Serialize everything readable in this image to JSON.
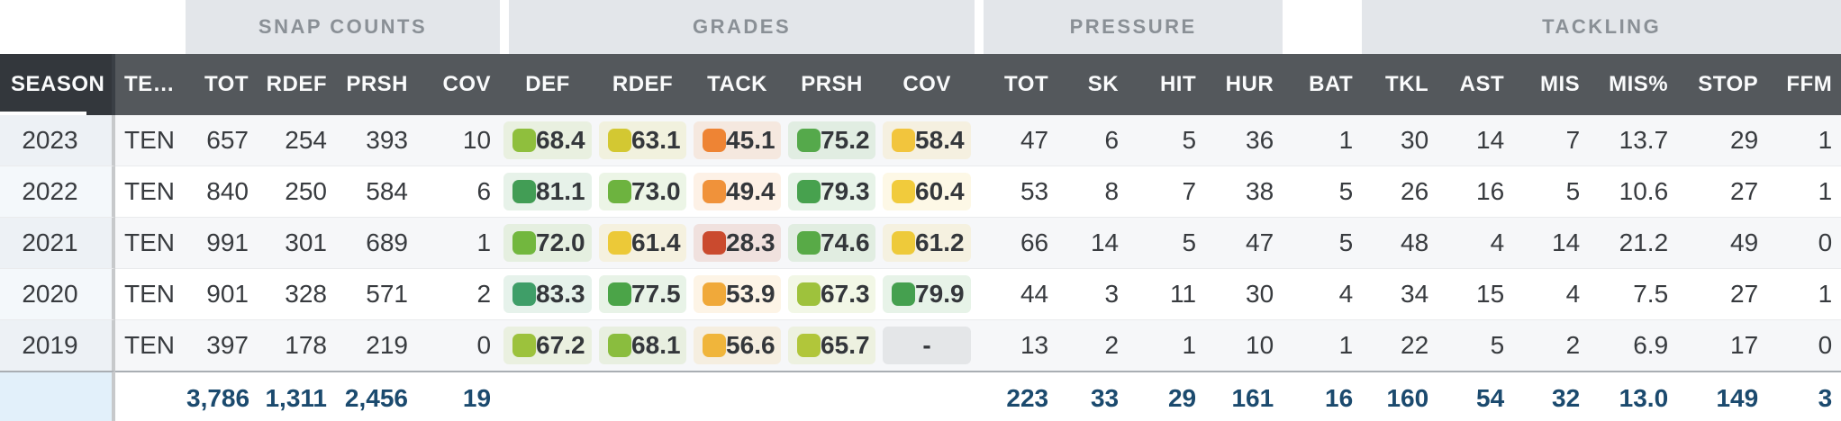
{
  "groups": {
    "snap_counts": "SNAP COUNTS",
    "grades": "GRADES",
    "pressure": "PRESSURE",
    "tackling": "TACKLING"
  },
  "columns": [
    "SEASON",
    "TE…",
    "TOT",
    "RDEF",
    "PRSH",
    "COV",
    "DEF",
    "RDEF",
    "TACK",
    "PRSH",
    "COV",
    "TOT",
    "SK",
    "HIT",
    "HUR",
    "BAT",
    "TKL",
    "AST",
    "MIS",
    "MIS%",
    "STOP",
    "FFM"
  ],
  "rows": [
    {
      "season": "2023",
      "team": "TEN",
      "snaps": [
        "657",
        "254",
        "393",
        "10"
      ],
      "grades": [
        {
          "v": "68.4",
          "c": "#8fbf3d"
        },
        {
          "v": "63.1",
          "c": "#d3c832"
        },
        {
          "v": "45.1",
          "c": "#ee8434"
        },
        {
          "v": "75.2",
          "c": "#55a94b"
        },
        {
          "v": "58.4",
          "c": "#f2c53d"
        }
      ],
      "pressure": [
        "47",
        "6",
        "5",
        "36",
        "1"
      ],
      "tackling": [
        "30",
        "14",
        "7",
        "13.7",
        "29",
        "1"
      ]
    },
    {
      "season": "2022",
      "team": "TEN",
      "snaps": [
        "840",
        "250",
        "584",
        "6"
      ],
      "grades": [
        {
          "v": "81.1",
          "c": "#429d55"
        },
        {
          "v": "73.0",
          "c": "#6db33f"
        },
        {
          "v": "49.4",
          "c": "#f0923a"
        },
        {
          "v": "79.3",
          "c": "#47a14e"
        },
        {
          "v": "60.4",
          "c": "#f1cb3c"
        }
      ],
      "pressure": [
        "53",
        "8",
        "7",
        "38",
        "5"
      ],
      "tackling": [
        "26",
        "16",
        "5",
        "10.6",
        "27",
        "1"
      ]
    },
    {
      "season": "2021",
      "team": "TEN",
      "snaps": [
        "991",
        "301",
        "689",
        "1"
      ],
      "grades": [
        {
          "v": "72.0",
          "c": "#72b73e"
        },
        {
          "v": "61.4",
          "c": "#ecc938"
        },
        {
          "v": "28.3",
          "c": "#ca4a2e"
        },
        {
          "v": "74.6",
          "c": "#58aa47"
        },
        {
          "v": "61.2",
          "c": "#eeca3a"
        }
      ],
      "pressure": [
        "66",
        "14",
        "5",
        "47",
        "5"
      ],
      "tackling": [
        "48",
        "4",
        "14",
        "21.2",
        "49",
        "0"
      ]
    },
    {
      "season": "2020",
      "team": "TEN",
      "snaps": [
        "901",
        "328",
        "571",
        "2"
      ],
      "grades": [
        {
          "v": "83.3",
          "c": "#3f9e68"
        },
        {
          "v": "77.5",
          "c": "#4ba448"
        },
        {
          "v": "53.9",
          "c": "#f0a93a"
        },
        {
          "v": "67.3",
          "c": "#9ec23c"
        },
        {
          "v": "79.9",
          "c": "#45a04f"
        }
      ],
      "pressure": [
        "44",
        "3",
        "11",
        "30",
        "4"
      ],
      "tackling": [
        "34",
        "15",
        "4",
        "7.5",
        "27",
        "1"
      ]
    },
    {
      "season": "2019",
      "team": "TEN",
      "snaps": [
        "397",
        "178",
        "219",
        "0"
      ],
      "grades": [
        {
          "v": "67.2",
          "c": "#9cc23c"
        },
        {
          "v": "68.1",
          "c": "#8abd3e"
        },
        {
          "v": "56.6",
          "c": "#f0b53b"
        },
        {
          "v": "65.7",
          "c": "#b1c63a"
        },
        {
          "v": "-",
          "c": null
        }
      ],
      "pressure": [
        "13",
        "2",
        "1",
        "10",
        "1"
      ],
      "tackling": [
        "22",
        "5",
        "2",
        "6.9",
        "17",
        "0"
      ]
    }
  ],
  "totals": {
    "snaps": [
      "3,786",
      "1,311",
      "2,456",
      "19"
    ],
    "pressure": [
      "223",
      "33",
      "29",
      "161",
      "16"
    ],
    "tackling": [
      "160",
      "54",
      "32",
      "13.0",
      "149",
      "3"
    ]
  },
  "theme": {
    "grade_elite": "#3f9e68",
    "grade_good": "#55a94b",
    "grade_avg": "#f2c53d",
    "grade_poor": "#ee8434",
    "grade_bad": "#ca4a2e",
    "header_bg": "#54585c",
    "season_header_bg": "#33373c",
    "band_bg": "#e3e6ea",
    "totals_text": "#1b4a6e",
    "dash_base": "#6e767d"
  }
}
